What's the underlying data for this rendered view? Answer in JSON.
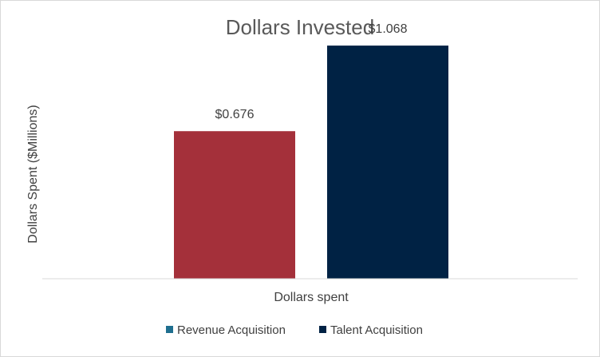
{
  "chart_data": {
    "type": "bar",
    "title": "Dollars Invested",
    "xlabel": "Dollars spent",
    "ylabel": "Dollars Spent ($Millions)",
    "categories": [
      "Dollars spent"
    ],
    "series": [
      {
        "name": "Revenue Acquisition",
        "values": [
          0.676
        ],
        "label": "$0.676",
        "bar_color": "#a4303a",
        "legend_color": "#1f6f8f"
      },
      {
        "name": "Talent Acquisition",
        "values": [
          1.068
        ],
        "label": "$1.068",
        "bar_color": "#002244",
        "legend_color": "#002244"
      }
    ],
    "ylim": [
      0,
      1.2
    ],
    "grid": false,
    "legend_position": "bottom"
  }
}
